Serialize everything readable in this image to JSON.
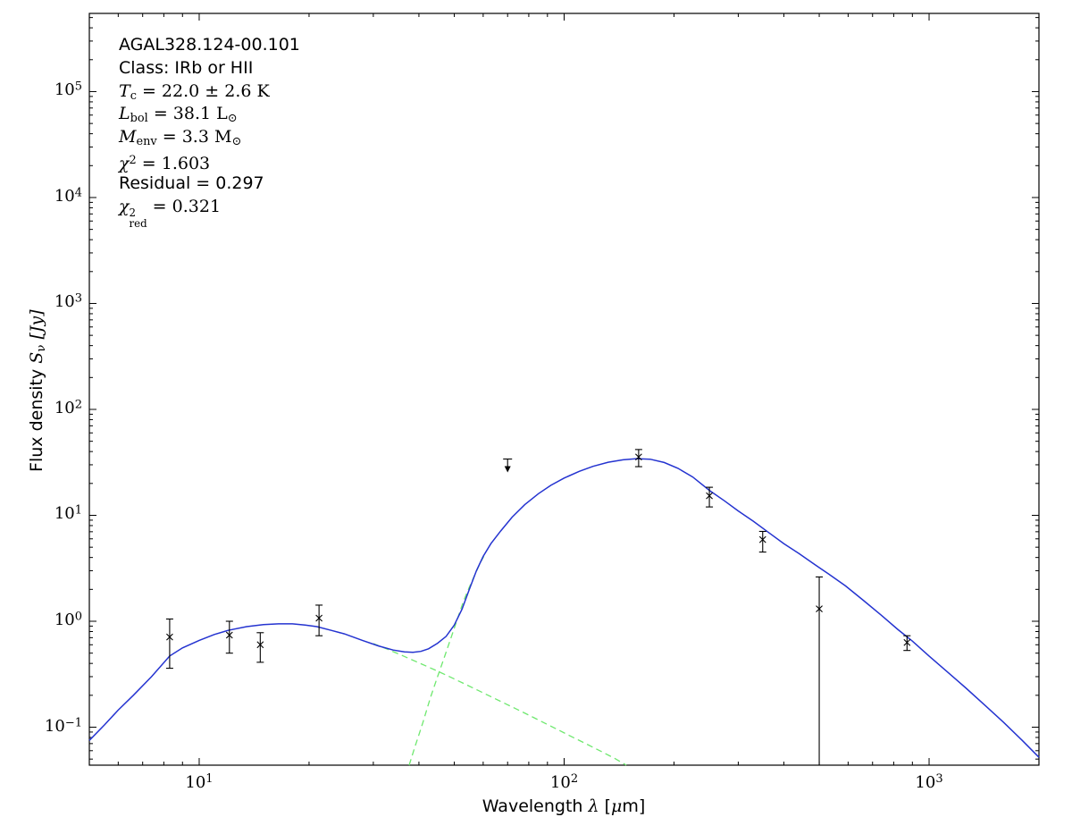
{
  "annotation": {
    "lines": [
      {
        "name": "source-name",
        "segs": [
          {
            "t": "AGAL328.124-00.101",
            "s": "sans"
          }
        ]
      },
      {
        "name": "source-class",
        "segs": [
          {
            "t": "Class: IRb or HII",
            "s": "sans"
          }
        ]
      },
      {
        "name": "temperature",
        "segs": [
          {
            "t": "T",
            "s": "it"
          },
          {
            "t": "c",
            "s": "sub"
          },
          {
            "t": " = 22.0 ± 2.6 K",
            "s": "rm"
          }
        ]
      },
      {
        "name": "luminosity",
        "segs": [
          {
            "t": "L",
            "s": "it"
          },
          {
            "t": "bol",
            "s": "sub"
          },
          {
            "t": " = 38.1 L",
            "s": "rm"
          },
          {
            "t": "⊙",
            "s": "sub"
          }
        ]
      },
      {
        "name": "envelope-mass",
        "segs": [
          {
            "t": "M",
            "s": "it"
          },
          {
            "t": "env",
            "s": "sub"
          },
          {
            "t": " = 3.3 M",
            "s": "rm"
          },
          {
            "t": "⊙",
            "s": "sub"
          }
        ]
      },
      {
        "name": "chi-squared",
        "segs": [
          {
            "t": "χ",
            "s": "it"
          },
          {
            "t": "2",
            "s": "sup"
          },
          {
            "t": " = 1.603",
            "s": "rm"
          }
        ]
      },
      {
        "name": "residual",
        "segs": [
          {
            "t": "Residual = 0.297",
            "s": "sans"
          }
        ]
      },
      {
        "name": "chi-squared-reduced",
        "segs": [
          {
            "t": "χ",
            "s": "it"
          },
          {
            "s": "stack",
            "sup": "2",
            "sub": "red"
          },
          {
            "t": " = 0.321",
            "s": "rm"
          }
        ]
      }
    ]
  },
  "chart_data": {
    "type": "line",
    "x_scale": "log",
    "y_scale": "log",
    "xlim": [
      5,
      2000
    ],
    "ylim": [
      0.0438,
      547000
    ],
    "xlabel_segs": [
      {
        "t": "Wavelength ",
        "s": "sans"
      },
      {
        "t": "λ",
        "s": "it"
      },
      {
        "t": " [",
        "s": "sans"
      },
      {
        "t": "μ",
        "s": "it"
      },
      {
        "t": "m]",
        "s": "sans"
      }
    ],
    "ylabel_segs": [
      {
        "t": "Flux density ",
        "s": "sans"
      },
      {
        "t": "S",
        "s": "it"
      },
      {
        "t": "ν",
        "s": "sub"
      },
      {
        "t": " [Jy]",
        "s": "it"
      }
    ],
    "tick_base": "10",
    "x_tick_exponents": [
      1,
      2,
      3
    ],
    "y_tick_exponents": [
      -1,
      0,
      1,
      2,
      3,
      4,
      5
    ],
    "grid": false,
    "legend": null,
    "colors": {
      "model": "#2433d0",
      "components": "#6fe86f",
      "data": "#000000",
      "frame": "#000000"
    },
    "series": [
      {
        "name": "model-total",
        "style": "solid",
        "color_key": "model",
        "points": [
          [
            5,
            0.075
          ],
          [
            5.5,
            0.105
          ],
          [
            6,
            0.145
          ],
          [
            6.6,
            0.2
          ],
          [
            7.4,
            0.3
          ],
          [
            8.3,
            0.47
          ],
          [
            9,
            0.56
          ],
          [
            10,
            0.66
          ],
          [
            11,
            0.75
          ],
          [
            12,
            0.82
          ],
          [
            13.5,
            0.89
          ],
          [
            15,
            0.93
          ],
          [
            16.5,
            0.945
          ],
          [
            18,
            0.945
          ],
          [
            19.5,
            0.92
          ],
          [
            21,
            0.89
          ],
          [
            23,
            0.82
          ],
          [
            25,
            0.76
          ],
          [
            28,
            0.66
          ],
          [
            31,
            0.585
          ],
          [
            34,
            0.535
          ],
          [
            36.5,
            0.515
          ],
          [
            38.5,
            0.51
          ],
          [
            40.5,
            0.52
          ],
          [
            42.5,
            0.55
          ],
          [
            45,
            0.62
          ],
          [
            47.5,
            0.72
          ],
          [
            50,
            0.92
          ],
          [
            52.5,
            1.3
          ],
          [
            55,
            2.0
          ],
          [
            57.5,
            3.0
          ],
          [
            60,
            4.1
          ],
          [
            63,
            5.4
          ],
          [
            67,
            7.1
          ],
          [
            72,
            9.6
          ],
          [
            78,
            12.6
          ],
          [
            85,
            16
          ],
          [
            92,
            19.2
          ],
          [
            100,
            22.5
          ],
          [
            110,
            26
          ],
          [
            120,
            29
          ],
          [
            132,
            31.7
          ],
          [
            145,
            33.4
          ],
          [
            158,
            34.3
          ],
          [
            172,
            33.9
          ],
          [
            188,
            31.5
          ],
          [
            205,
            27.8
          ],
          [
            225,
            23
          ],
          [
            250,
            17.2
          ],
          [
            275,
            13.7
          ],
          [
            300,
            11.0
          ],
          [
            330,
            8.8
          ],
          [
            365,
            6.8
          ],
          [
            400,
            5.4
          ],
          [
            440,
            4.35
          ],
          [
            485,
            3.45
          ],
          [
            530,
            2.8
          ],
          [
            590,
            2.16
          ],
          [
            660,
            1.58
          ],
          [
            740,
            1.14
          ],
          [
            820,
            0.84
          ],
          [
            900,
            0.65
          ],
          [
            1000,
            0.47
          ],
          [
            1120,
            0.335
          ],
          [
            1260,
            0.235
          ],
          [
            1420,
            0.162
          ],
          [
            1600,
            0.111
          ],
          [
            1800,
            0.075
          ],
          [
            2000,
            0.052
          ]
        ]
      },
      {
        "name": "warm-component",
        "style": "dashed",
        "color_key": "components",
        "points": [
          [
            30,
            0.615
          ],
          [
            33,
            0.54
          ],
          [
            36,
            0.475
          ],
          [
            40,
            0.405
          ],
          [
            44,
            0.35
          ],
          [
            48,
            0.305
          ],
          [
            53,
            0.259
          ],
          [
            58,
            0.223
          ],
          [
            64,
            0.189
          ],
          [
            70,
            0.163
          ],
          [
            77,
            0.139
          ],
          [
            85,
            0.117
          ],
          [
            94,
            0.0985
          ],
          [
            104,
            0.0825
          ],
          [
            115,
            0.0695
          ],
          [
            127,
            0.0585
          ],
          [
            138,
            0.0505
          ],
          [
            148,
            0.0438
          ]
        ]
      },
      {
        "name": "cold-component",
        "style": "dashed",
        "color_key": "components",
        "points": [
          [
            37.6,
            0.0438
          ],
          [
            39,
            0.065
          ],
          [
            41,
            0.11
          ],
          [
            43,
            0.19
          ],
          [
            45,
            0.3
          ],
          [
            47,
            0.46
          ],
          [
            49,
            0.7
          ],
          [
            51,
            1.05
          ],
          [
            53,
            1.55
          ],
          [
            55,
            2.1
          ],
          [
            57,
            2.78
          ],
          [
            59,
            3.6
          ],
          [
            60.5,
            4.2
          ]
        ]
      }
    ],
    "data_points": [
      {
        "x": 8.3,
        "y": 0.71,
        "ylo": 0.36,
        "yhi": 1.05
      },
      {
        "x": 12.1,
        "y": 0.74,
        "ylo": 0.5,
        "yhi": 1.0
      },
      {
        "x": 14.7,
        "y": 0.6,
        "ylo": 0.41,
        "yhi": 0.78
      },
      {
        "x": 21.3,
        "y": 1.07,
        "ylo": 0.73,
        "yhi": 1.42
      },
      {
        "x": 160,
        "y": 35.5,
        "ylo": 28.8,
        "yhi": 41.8
      },
      {
        "x": 250,
        "y": 15.3,
        "ylo": 12.0,
        "yhi": 18.4
      },
      {
        "x": 350,
        "y": 5.9,
        "ylo": 4.5,
        "yhi": 7.05
      },
      {
        "x": 500,
        "y": 1.31,
        "ylo": 0.044,
        "yhi": 2.62,
        "no_lo_cap": true
      },
      {
        "x": 870,
        "y": 0.63,
        "ylo": 0.53,
        "yhi": 0.73
      }
    ],
    "upper_limits": [
      {
        "x": 70,
        "y": 34,
        "arrow_to": 28
      }
    ]
  }
}
